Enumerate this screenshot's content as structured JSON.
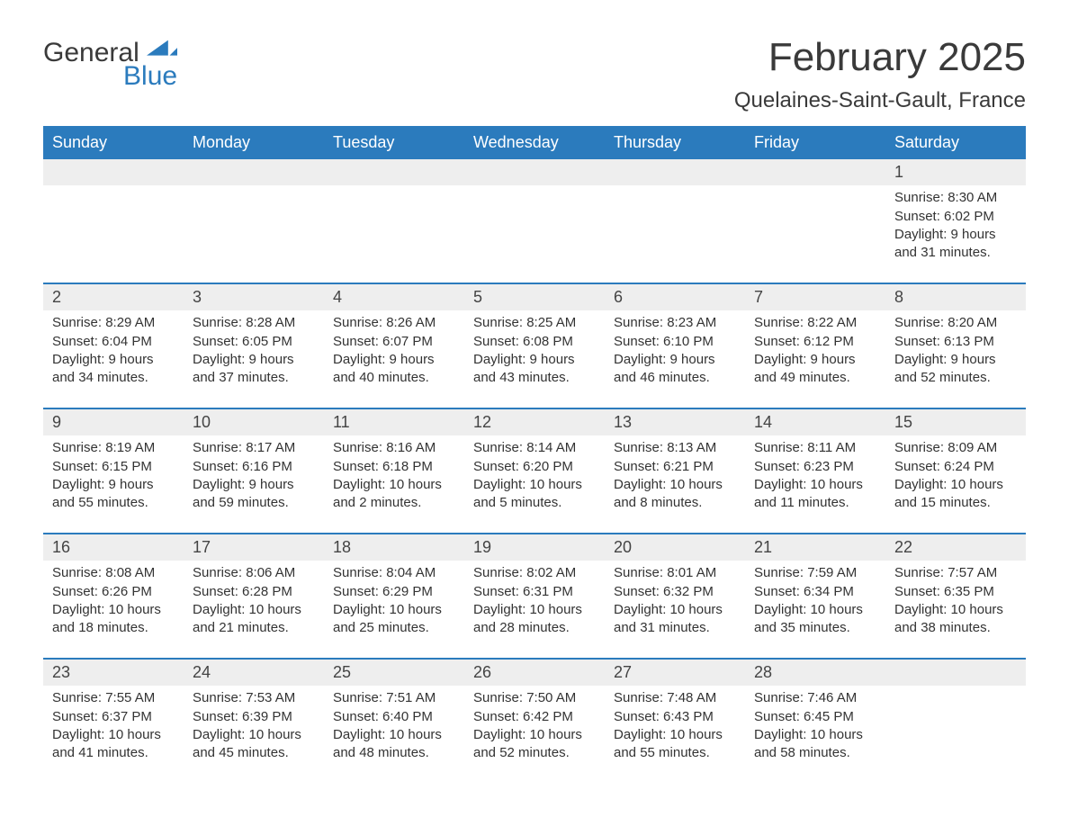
{
  "logo": {
    "general": "General",
    "blue": "Blue"
  },
  "title": "February 2025",
  "location": "Quelaines-Saint-Gault, France",
  "colors": {
    "header_bg": "#2b7bbd",
    "header_text": "#ffffff",
    "daynum_bg": "#eeeeee",
    "week_border": "#2b7bbd",
    "text": "#333333",
    "page_bg": "#ffffff"
  },
  "day_names": [
    "Sunday",
    "Monday",
    "Tuesday",
    "Wednesday",
    "Thursday",
    "Friday",
    "Saturday"
  ],
  "weeks": [
    [
      {
        "day": "",
        "sunrise": "",
        "sunset": "",
        "daylight": ""
      },
      {
        "day": "",
        "sunrise": "",
        "sunset": "",
        "daylight": ""
      },
      {
        "day": "",
        "sunrise": "",
        "sunset": "",
        "daylight": ""
      },
      {
        "day": "",
        "sunrise": "",
        "sunset": "",
        "daylight": ""
      },
      {
        "day": "",
        "sunrise": "",
        "sunset": "",
        "daylight": ""
      },
      {
        "day": "",
        "sunrise": "",
        "sunset": "",
        "daylight": ""
      },
      {
        "day": "1",
        "sunrise": "Sunrise: 8:30 AM",
        "sunset": "Sunset: 6:02 PM",
        "daylight": "Daylight: 9 hours and 31 minutes."
      }
    ],
    [
      {
        "day": "2",
        "sunrise": "Sunrise: 8:29 AM",
        "sunset": "Sunset: 6:04 PM",
        "daylight": "Daylight: 9 hours and 34 minutes."
      },
      {
        "day": "3",
        "sunrise": "Sunrise: 8:28 AM",
        "sunset": "Sunset: 6:05 PM",
        "daylight": "Daylight: 9 hours and 37 minutes."
      },
      {
        "day": "4",
        "sunrise": "Sunrise: 8:26 AM",
        "sunset": "Sunset: 6:07 PM",
        "daylight": "Daylight: 9 hours and 40 minutes."
      },
      {
        "day": "5",
        "sunrise": "Sunrise: 8:25 AM",
        "sunset": "Sunset: 6:08 PM",
        "daylight": "Daylight: 9 hours and 43 minutes."
      },
      {
        "day": "6",
        "sunrise": "Sunrise: 8:23 AM",
        "sunset": "Sunset: 6:10 PM",
        "daylight": "Daylight: 9 hours and 46 minutes."
      },
      {
        "day": "7",
        "sunrise": "Sunrise: 8:22 AM",
        "sunset": "Sunset: 6:12 PM",
        "daylight": "Daylight: 9 hours and 49 minutes."
      },
      {
        "day": "8",
        "sunrise": "Sunrise: 8:20 AM",
        "sunset": "Sunset: 6:13 PM",
        "daylight": "Daylight: 9 hours and 52 minutes."
      }
    ],
    [
      {
        "day": "9",
        "sunrise": "Sunrise: 8:19 AM",
        "sunset": "Sunset: 6:15 PM",
        "daylight": "Daylight: 9 hours and 55 minutes."
      },
      {
        "day": "10",
        "sunrise": "Sunrise: 8:17 AM",
        "sunset": "Sunset: 6:16 PM",
        "daylight": "Daylight: 9 hours and 59 minutes."
      },
      {
        "day": "11",
        "sunrise": "Sunrise: 8:16 AM",
        "sunset": "Sunset: 6:18 PM",
        "daylight": "Daylight: 10 hours and 2 minutes."
      },
      {
        "day": "12",
        "sunrise": "Sunrise: 8:14 AM",
        "sunset": "Sunset: 6:20 PM",
        "daylight": "Daylight: 10 hours and 5 minutes."
      },
      {
        "day": "13",
        "sunrise": "Sunrise: 8:13 AM",
        "sunset": "Sunset: 6:21 PM",
        "daylight": "Daylight: 10 hours and 8 minutes."
      },
      {
        "day": "14",
        "sunrise": "Sunrise: 8:11 AM",
        "sunset": "Sunset: 6:23 PM",
        "daylight": "Daylight: 10 hours and 11 minutes."
      },
      {
        "day": "15",
        "sunrise": "Sunrise: 8:09 AM",
        "sunset": "Sunset: 6:24 PM",
        "daylight": "Daylight: 10 hours and 15 minutes."
      }
    ],
    [
      {
        "day": "16",
        "sunrise": "Sunrise: 8:08 AM",
        "sunset": "Sunset: 6:26 PM",
        "daylight": "Daylight: 10 hours and 18 minutes."
      },
      {
        "day": "17",
        "sunrise": "Sunrise: 8:06 AM",
        "sunset": "Sunset: 6:28 PM",
        "daylight": "Daylight: 10 hours and 21 minutes."
      },
      {
        "day": "18",
        "sunrise": "Sunrise: 8:04 AM",
        "sunset": "Sunset: 6:29 PM",
        "daylight": "Daylight: 10 hours and 25 minutes."
      },
      {
        "day": "19",
        "sunrise": "Sunrise: 8:02 AM",
        "sunset": "Sunset: 6:31 PM",
        "daylight": "Daylight: 10 hours and 28 minutes."
      },
      {
        "day": "20",
        "sunrise": "Sunrise: 8:01 AM",
        "sunset": "Sunset: 6:32 PM",
        "daylight": "Daylight: 10 hours and 31 minutes."
      },
      {
        "day": "21",
        "sunrise": "Sunrise: 7:59 AM",
        "sunset": "Sunset: 6:34 PM",
        "daylight": "Daylight: 10 hours and 35 minutes."
      },
      {
        "day": "22",
        "sunrise": "Sunrise: 7:57 AM",
        "sunset": "Sunset: 6:35 PM",
        "daylight": "Daylight: 10 hours and 38 minutes."
      }
    ],
    [
      {
        "day": "23",
        "sunrise": "Sunrise: 7:55 AM",
        "sunset": "Sunset: 6:37 PM",
        "daylight": "Daylight: 10 hours and 41 minutes."
      },
      {
        "day": "24",
        "sunrise": "Sunrise: 7:53 AM",
        "sunset": "Sunset: 6:39 PM",
        "daylight": "Daylight: 10 hours and 45 minutes."
      },
      {
        "day": "25",
        "sunrise": "Sunrise: 7:51 AM",
        "sunset": "Sunset: 6:40 PM",
        "daylight": "Daylight: 10 hours and 48 minutes."
      },
      {
        "day": "26",
        "sunrise": "Sunrise: 7:50 AM",
        "sunset": "Sunset: 6:42 PM",
        "daylight": "Daylight: 10 hours and 52 minutes."
      },
      {
        "day": "27",
        "sunrise": "Sunrise: 7:48 AM",
        "sunset": "Sunset: 6:43 PM",
        "daylight": "Daylight: 10 hours and 55 minutes."
      },
      {
        "day": "28",
        "sunrise": "Sunrise: 7:46 AM",
        "sunset": "Sunset: 6:45 PM",
        "daylight": "Daylight: 10 hours and 58 minutes."
      },
      {
        "day": "",
        "sunrise": "",
        "sunset": "",
        "daylight": ""
      }
    ]
  ]
}
